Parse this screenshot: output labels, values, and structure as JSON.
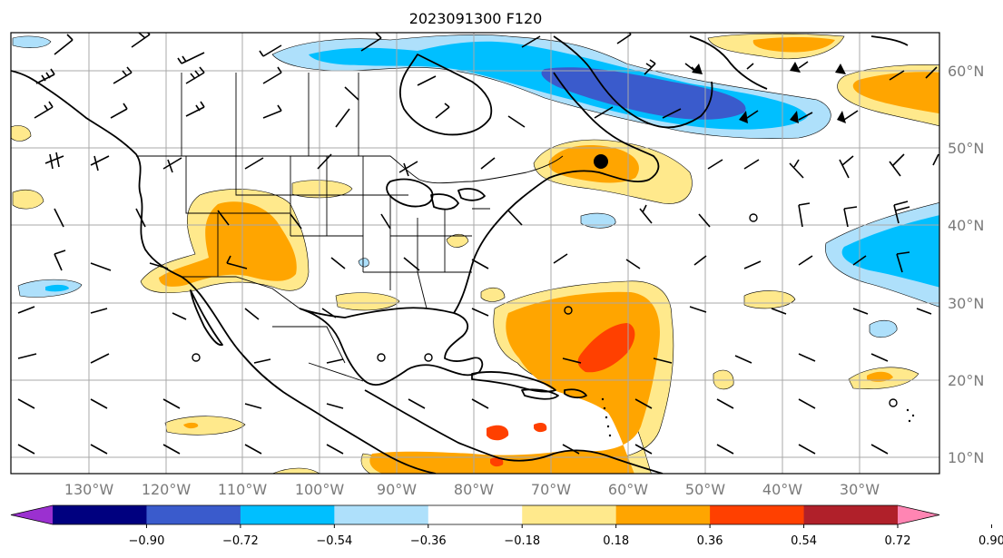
{
  "title": "2023091300 F120",
  "map": {
    "lon_labels": [
      "130°W",
      "120°W",
      "110°W",
      "100°W",
      "90°W",
      "80°W",
      "70°W",
      "60°W",
      "50°W",
      "40°W",
      "30°W"
    ],
    "lat_labels": [
      "60°N",
      "50°N",
      "40°N",
      "30°N",
      "20°N",
      "10°N"
    ],
    "overlay": "wind barbs",
    "low_center_marker": "filled black circle near 68°W 48°N"
  },
  "colorbar": {
    "tick_labels": [
      "−0.90",
      "−0.72",
      "−0.54",
      "−0.36",
      "−0.18",
      "0.18",
      "0.36",
      "0.54",
      "0.72",
      "0.90"
    ],
    "colors": [
      "#9b30d0",
      "#00007f",
      "#3a5bcc",
      "#00bfff",
      "#aee0fb",
      "#ffffff",
      "#ffe98c",
      "#ffa500",
      "#ff4000",
      "#b0202a",
      "#ff85b3"
    ],
    "extend": "both"
  },
  "anomaly_regions": [
    {
      "name": "Labrador Sea / N Atlantic negative",
      "sign": "negative",
      "peak": "-0.72"
    },
    {
      "name": "Subtropical Atlantic negative",
      "sign": "negative",
      "peak": "-0.54"
    },
    {
      "name": "Gulf of St. Lawrence positive",
      "sign": "positive",
      "peak": "0.54"
    },
    {
      "name": "US Southwest positive",
      "sign": "positive",
      "peak": "0.54"
    },
    {
      "name": "Western Atlantic tropical positive",
      "sign": "positive",
      "peak": "0.72"
    },
    {
      "name": "Caribbean positive",
      "sign": "positive",
      "peak": "0.72"
    },
    {
      "name": "NE Atlantic positive",
      "sign": "positive",
      "peak": "0.54"
    }
  ]
}
